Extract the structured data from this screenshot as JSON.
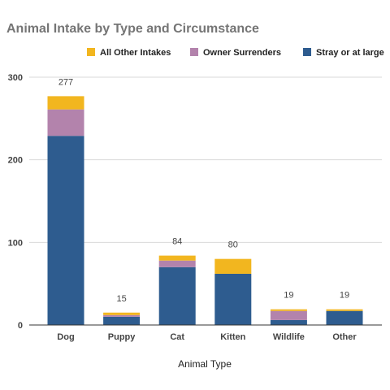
{
  "chart_data": {
    "type": "bar",
    "stacked": true,
    "title": "Animal Intake by Type and Circumstance",
    "xlabel": "Animal Type",
    "ylabel": "",
    "ylim": [
      0,
      300
    ],
    "yticks": [
      0,
      100,
      200,
      300
    ],
    "grid": true,
    "legend_position": "top",
    "categories": [
      "Dog",
      "Puppy",
      "Cat",
      "Kitten",
      "Wildlife",
      "Other"
    ],
    "totals": [
      277,
      15,
      84,
      80,
      19,
      19
    ],
    "series": [
      {
        "name": "Stray or at large",
        "color": "#2e5c8f",
        "values": [
          229,
          10,
          70,
          62,
          6,
          17
        ]
      },
      {
        "name": "Owner Surrenders",
        "color": "#b383ac",
        "values": [
          32,
          2,
          8,
          0,
          11,
          0
        ]
      },
      {
        "name": "All Other Intakes",
        "color": "#f2b61f",
        "values": [
          16,
          3,
          6,
          18,
          2,
          2
        ]
      }
    ],
    "legend_order": [
      "All Other Intakes",
      "Owner Surrenders",
      "Stray or at large"
    ]
  }
}
